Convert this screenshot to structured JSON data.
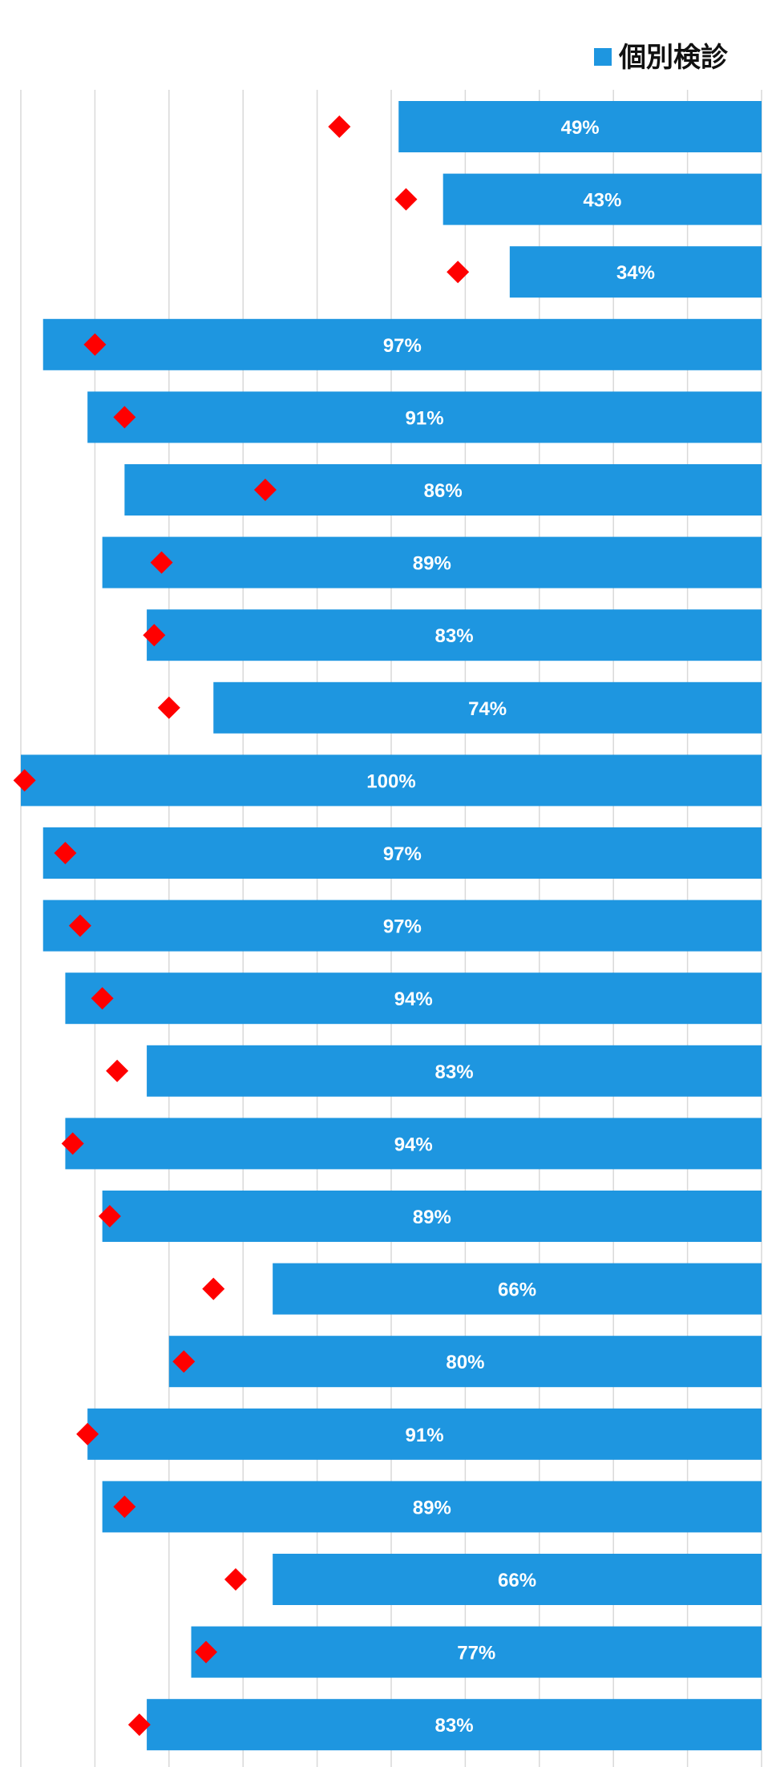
{
  "chart_data": {
    "type": "bar",
    "orientation": "horizontal",
    "direction": "right-to-left",
    "legend": {
      "position": "top-right",
      "series_name": "個別検診",
      "color": "#1e96e0"
    },
    "xlim": [
      0,
      100
    ],
    "grid": true,
    "grid_step": 10,
    "series": [
      {
        "name": "個別検診",
        "color": "#1e96e0",
        "values": [
          49,
          43,
          34,
          97,
          91,
          86,
          89,
          83,
          74,
          100,
          97,
          97,
          94,
          83,
          94,
          89,
          66,
          80,
          91,
          89,
          66,
          77,
          83
        ],
        "labels": [
          "49%",
          "43%",
          "34%",
          "97%",
          "91%",
          "86%",
          "89%",
          "83%",
          "74%",
          "100%",
          "97%",
          "97%",
          "94%",
          "83%",
          "94%",
          "89%",
          "66%",
          "80%",
          "91%",
          "89%",
          "66%",
          "77%",
          "83%"
        ]
      },
      {
        "marker": "diamond",
        "color": "#ff0000",
        "values": [
          57,
          48,
          41,
          90,
          86,
          67,
          81,
          82,
          80,
          99.5,
          94,
          92,
          89,
          87,
          93,
          88,
          74,
          78,
          91,
          86,
          71,
          75,
          84
        ]
      }
    ]
  }
}
